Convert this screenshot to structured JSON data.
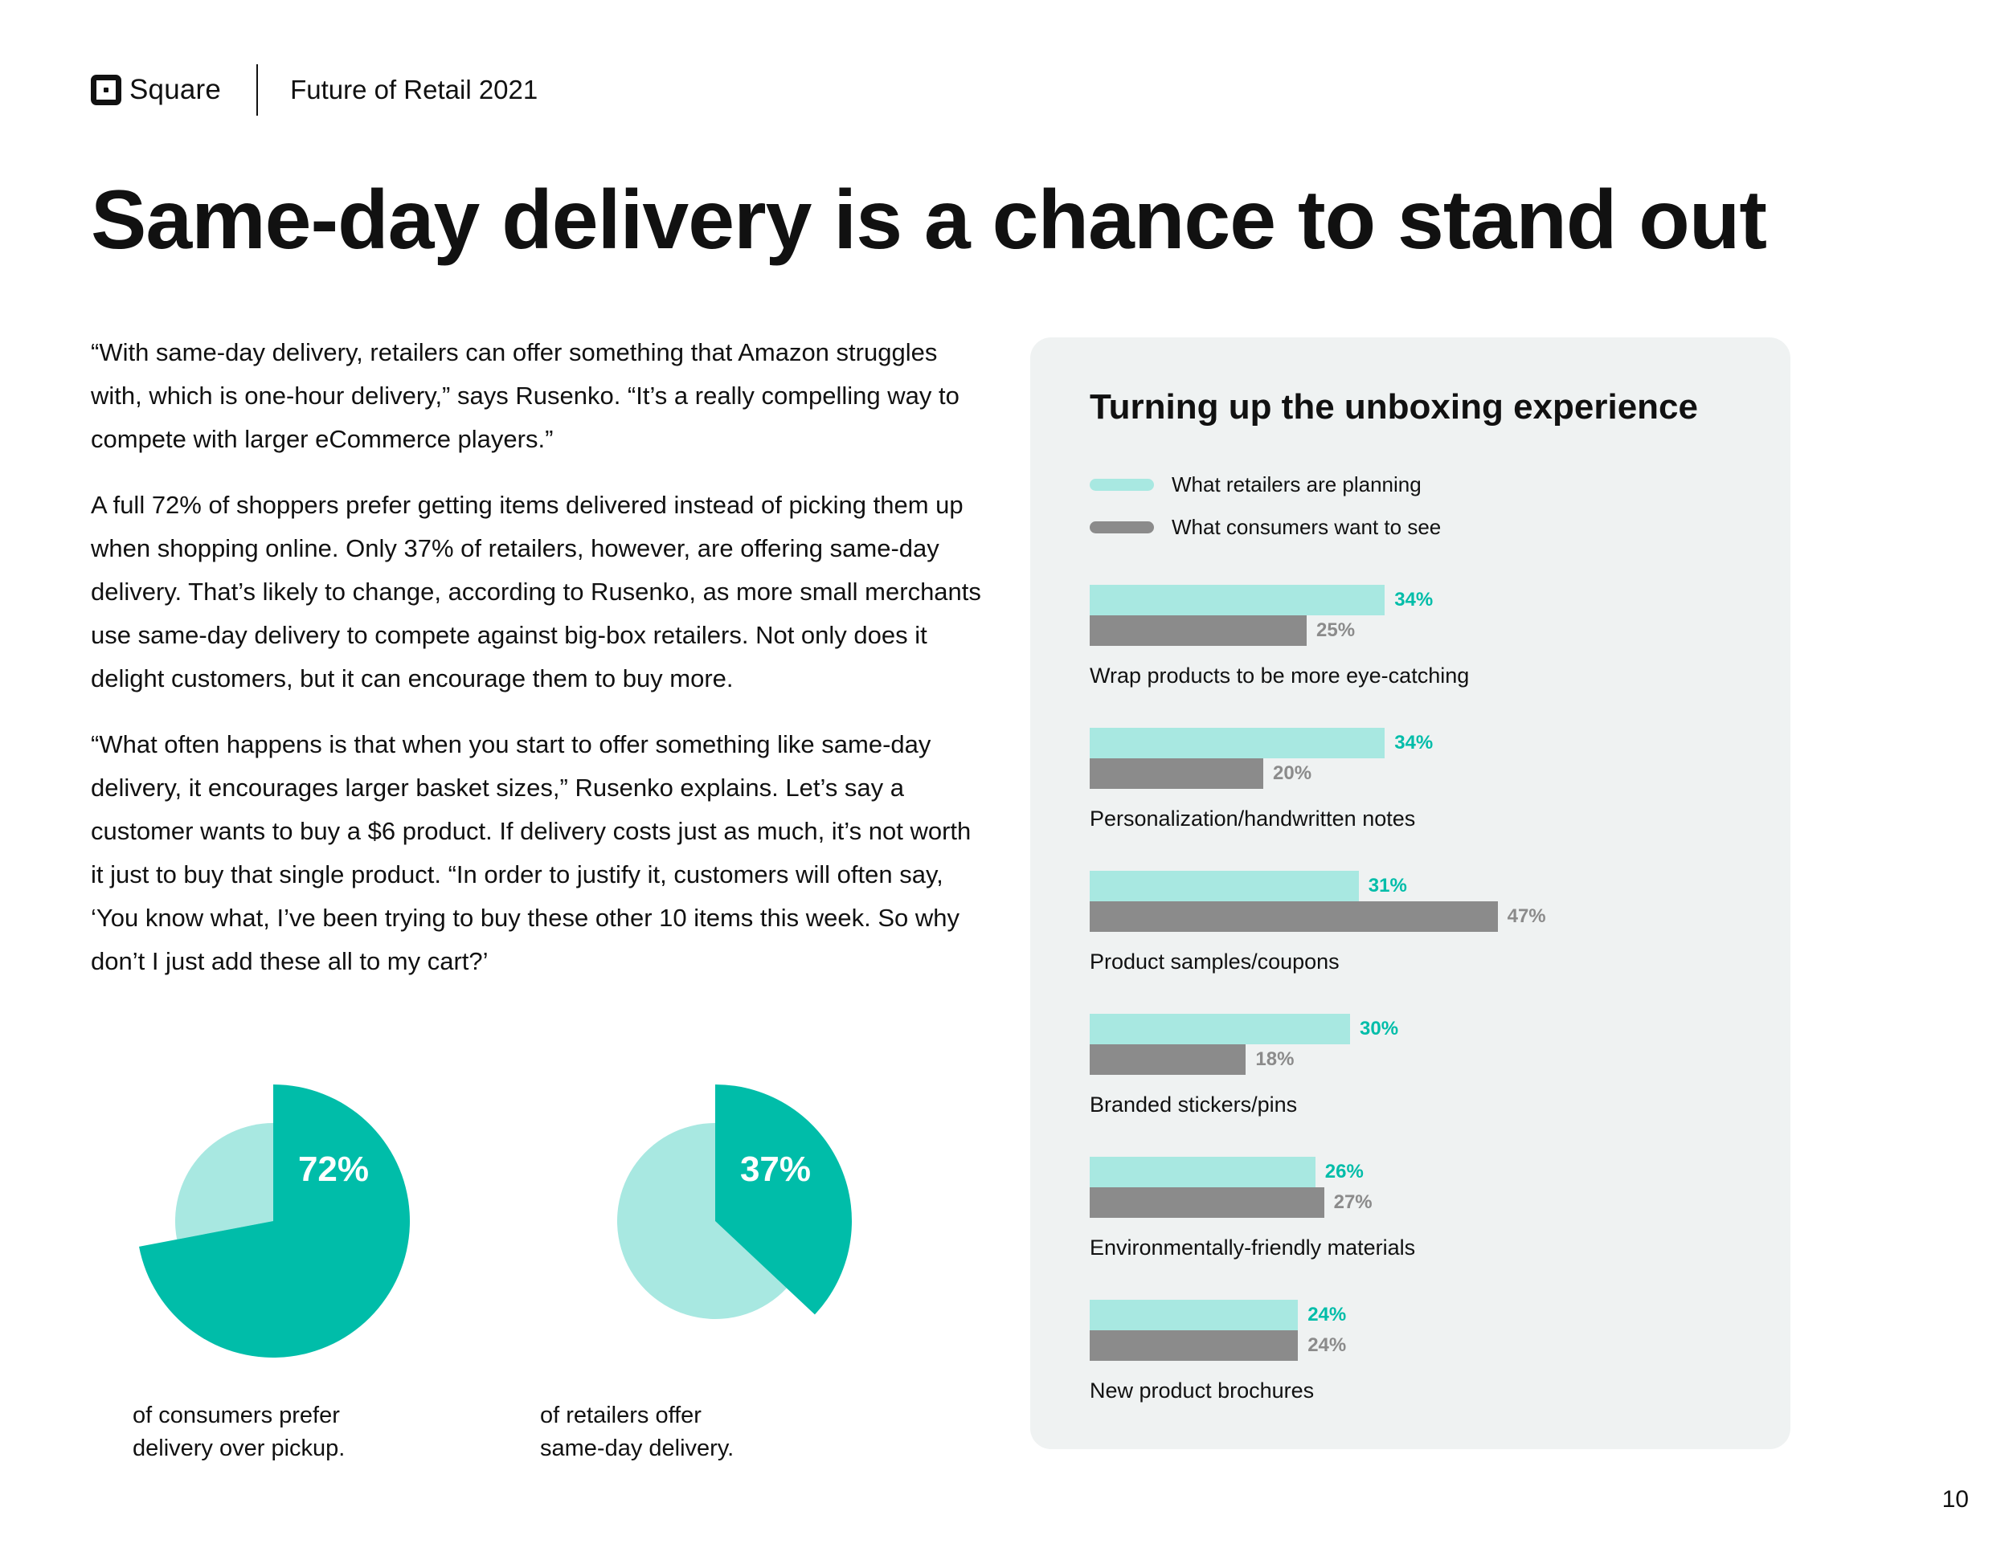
{
  "header": {
    "brand": "Square",
    "document": "Future of Retail 2021"
  },
  "title": "Same-day delivery is a chance to stand out",
  "body": [
    "“With same-day delivery, retailers can offer something that Amazon struggles with, which is one-hour delivery,” says Rusenko. “It’s a really compelling way to compete with larger eCommerce players.”",
    "A full 72% of shoppers prefer getting items delivered instead of picking them up when shopping online. Only 37% of retailers, however, are offering same-day delivery. That’s likely to change, according to Rusenko, as more small merchants use same-day delivery to compete against big-box retailers. Not only does it delight customers, but it can encourage them to buy more.",
    "“What often happens is that when you start to offer something like same-day delivery, it encourages larger basket sizes,” Rusenko explains. Let’s say a customer wants to buy a $6 product. If delivery costs just as much, it’s not worth it just to buy that single product. “In order to justify it, customers will often say, ‘You know what, I’ve been trying to buy these other 10 items this week. So why don’t I just add these all to my cart?’"
  ],
  "colors": {
    "teal": "#00bda9",
    "light_teal": "#a8e8e1",
    "gray": "#8b8b8b",
    "panel_bg": "#eff2f2"
  },
  "page_number": "10",
  "chart_data": [
    {
      "type": "pie",
      "slices": [
        {
          "label": "72%",
          "value": 72
        },
        {
          "value": 28
        }
      ],
      "caption": [
        "of consumers prefer",
        "delivery over pickup."
      ]
    },
    {
      "type": "pie",
      "slices": [
        {
          "label": "37%",
          "value": 37
        },
        {
          "value": 63
        }
      ],
      "caption": [
        "of retailers offer",
        "same-day delivery."
      ]
    },
    {
      "type": "bar",
      "orientation": "horizontal",
      "title": "Turning up the unboxing experience",
      "legend_position": "top",
      "categories": [
        "Wrap products to be more eye-catching",
        "Personalization/handwritten notes",
        "Product samples/coupons",
        "Branded stickers/pins",
        "Environmentally-friendly materials",
        "New product brochures"
      ],
      "series": [
        {
          "name": "What retailers are planning",
          "values": [
            34,
            34,
            31,
            30,
            26,
            24
          ],
          "labels": [
            "34%",
            "34%",
            "31%",
            "30%",
            "26%",
            "24%"
          ]
        },
        {
          "name": "What consumers want to see",
          "values": [
            25,
            20,
            47,
            18,
            27,
            24
          ],
          "labels": [
            "25%",
            "20%",
            "47%",
            "18%",
            "27%",
            "24%"
          ]
        }
      ]
    }
  ]
}
